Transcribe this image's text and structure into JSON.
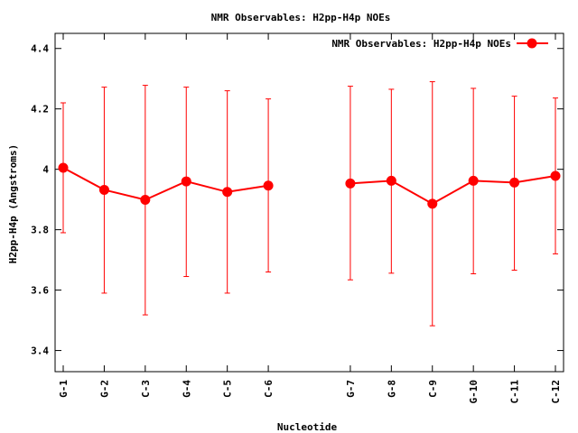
{
  "chart_data": {
    "type": "line",
    "title": "NMR Observables: H2pp-H4p NOEs",
    "xlabel": "Nucleotide",
    "ylabel": "H2pp-H4p (Angstroms)",
    "ylim": [
      3.33,
      4.45
    ],
    "yticks": [
      3.4,
      3.6,
      3.8,
      4,
      4.2,
      4.4
    ],
    "ytick_labels": [
      "3.4",
      "3.6",
      "3.8",
      "4",
      "4.2",
      "4.4"
    ],
    "legend_position": "top-right",
    "grid": false,
    "categories": [
      "G-1",
      "G-2",
      "C-3",
      "G-4",
      "C-5",
      "C-6",
      "G-7",
      "G-8",
      "C-9",
      "G-10",
      "C-11",
      "C-12"
    ],
    "x": [
      1,
      2,
      3,
      4,
      5,
      6,
      8,
      9,
      10,
      11,
      12,
      13
    ],
    "xlim": [
      1,
      13
    ],
    "segments": [
      [
        0,
        5
      ],
      [
        6,
        11
      ]
    ],
    "series": [
      {
        "name": "NMR Observables: H2pp-H4p NOEs",
        "color": "#ff0000",
        "values": [
          4.005,
          3.932,
          3.899,
          3.96,
          3.925,
          3.946,
          3.953,
          3.962,
          3.886,
          3.962,
          3.956,
          3.978
        ],
        "error_low": [
          3.79,
          3.59,
          3.518,
          3.645,
          3.59,
          3.66,
          3.634,
          3.656,
          3.482,
          3.654,
          3.666,
          3.72
        ],
        "error_high": [
          4.22,
          4.272,
          4.278,
          4.272,
          4.26,
          4.233,
          4.275,
          4.265,
          4.29,
          4.268,
          4.242,
          4.236
        ]
      }
    ]
  }
}
